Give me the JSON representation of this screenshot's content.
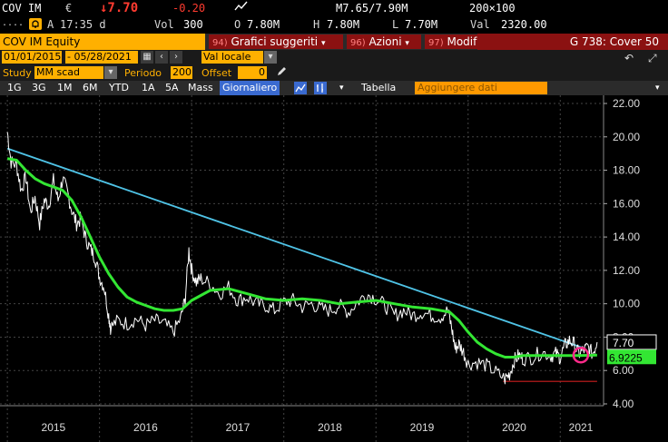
{
  "ticker": {
    "symbol": "COV IM",
    "currency": "€",
    "last_price": "↓7.70",
    "change": "-0.20",
    "dots": "....",
    "session": "A",
    "time": "17:35 d",
    "vol_label": "Vol",
    "vol": "300",
    "open_label": "O",
    "open": "7.80M",
    "high_label": "H",
    "high": "7.80M",
    "low_label": "L",
    "low": "7.70M",
    "bid_ask": "M7.65/7.90M",
    "size": "200×100",
    "val_label": "Val",
    "val": "2320.00"
  },
  "menubar": {
    "equity": "COV IM Equity",
    "btn_graphs_num": "94)",
    "btn_graphs": "Grafici suggeriti",
    "btn_actions_num": "96)",
    "btn_actions": "Azioni",
    "btn_modify_num": "97)",
    "btn_modify": "Modif",
    "cover": "G 738: Cover 50"
  },
  "daterow": {
    "start": "01/01/2015",
    "end": "05/28/2021",
    "currency_sel": "Val locale"
  },
  "studyrow": {
    "study_label": "Study",
    "study": "MM scad",
    "period_label": "Periodo",
    "period": "200",
    "offset_label": "Offset",
    "offset": "0"
  },
  "timeframes": [
    "1G",
    "3G",
    "1M",
    "6M",
    "YTD",
    "1A",
    "5A",
    "Mass"
  ],
  "timeframe_active": "Giornaliero",
  "table_label": "Tabella",
  "add_data": "Aggiungere dati",
  "colors": {
    "price": "#ffffff",
    "ma": "#33e633",
    "trend": "#4fc3e6",
    "support": "#cc1f1f"
  },
  "chart_data": {
    "type": "line",
    "x_ticks": [
      "2015",
      "2016",
      "2017",
      "2018",
      "2019",
      "2020",
      "2021"
    ],
    "y_ticks": [
      "22.00",
      "20.00",
      "18.00",
      "16.00",
      "14.00",
      "12.00",
      "10.00",
      "8.00",
      "6.00",
      "4.00"
    ],
    "ylim": [
      4,
      22.6
    ],
    "last_price_label": "7.70",
    "ma_label": "6.9225",
    "series": [
      {
        "key": "price",
        "values": [
          [
            2015.0,
            20.3
          ],
          [
            2015.04,
            18.5
          ],
          [
            2015.1,
            18.3
          ],
          [
            2015.15,
            16.8
          ],
          [
            2015.2,
            17.6
          ],
          [
            2015.25,
            15.5
          ],
          [
            2015.3,
            16.4
          ],
          [
            2015.35,
            14.8
          ],
          [
            2015.4,
            16.2
          ],
          [
            2015.45,
            15.9
          ],
          [
            2015.5,
            17.4
          ],
          [
            2015.55,
            16.2
          ],
          [
            2015.6,
            17.5
          ],
          [
            2015.65,
            16.7
          ],
          [
            2015.7,
            15.6
          ],
          [
            2015.75,
            14.8
          ],
          [
            2015.8,
            15.1
          ],
          [
            2015.85,
            13.9
          ],
          [
            2015.9,
            13.3
          ],
          [
            2015.95,
            12.8
          ],
          [
            2016.0,
            11.6
          ],
          [
            2016.05,
            11.0
          ],
          [
            2016.1,
            9.3
          ],
          [
            2016.12,
            8.6
          ],
          [
            2016.2,
            9.0
          ],
          [
            2016.3,
            8.8
          ],
          [
            2016.4,
            9.1
          ],
          [
            2016.5,
            8.7
          ],
          [
            2016.6,
            9.0
          ],
          [
            2016.7,
            8.8
          ],
          [
            2016.8,
            8.3
          ],
          [
            2016.88,
            9.1
          ],
          [
            2016.93,
            10.3
          ],
          [
            2016.97,
            13.2
          ],
          [
            2017.0,
            12.0
          ],
          [
            2017.05,
            11.3
          ],
          [
            2017.1,
            11.5
          ],
          [
            2017.2,
            11.2
          ],
          [
            2017.3,
            10.6
          ],
          [
            2017.4,
            11.0
          ],
          [
            2017.5,
            10.2
          ],
          [
            2017.6,
            10.4
          ],
          [
            2017.7,
            10.0
          ],
          [
            2017.8,
            9.9
          ],
          [
            2017.9,
            9.6
          ],
          [
            2018.0,
            10.1
          ],
          [
            2018.1,
            10.2
          ],
          [
            2018.2,
            9.8
          ],
          [
            2018.3,
            10.0
          ],
          [
            2018.4,
            9.7
          ],
          [
            2018.5,
            9.6
          ],
          [
            2018.6,
            9.9
          ],
          [
            2018.7,
            9.5
          ],
          [
            2018.8,
            10.1
          ],
          [
            2018.9,
            10.6
          ],
          [
            2019.0,
            10.3
          ],
          [
            2019.1,
            9.9
          ],
          [
            2019.2,
            9.3
          ],
          [
            2019.3,
            9.6
          ],
          [
            2019.4,
            9.3
          ],
          [
            2019.5,
            9.5
          ],
          [
            2019.6,
            9.3
          ],
          [
            2019.7,
            9.2
          ],
          [
            2019.78,
            9.6
          ],
          [
            2019.82,
            8.6
          ],
          [
            2019.86,
            7.3
          ],
          [
            2019.9,
            7.6
          ],
          [
            2019.95,
            7.1
          ],
          [
            2020.0,
            6.4
          ],
          [
            2020.1,
            6.5
          ],
          [
            2020.2,
            6.3
          ],
          [
            2020.3,
            5.9
          ],
          [
            2020.4,
            5.5
          ],
          [
            2020.45,
            5.8
          ],
          [
            2020.5,
            6.6
          ],
          [
            2020.55,
            6.9
          ],
          [
            2020.6,
            6.7
          ],
          [
            2020.7,
            6.8
          ],
          [
            2020.8,
            7.1
          ],
          [
            2020.9,
            6.9
          ],
          [
            2020.95,
            7.0
          ],
          [
            2021.0,
            6.8
          ],
          [
            2021.05,
            7.5
          ],
          [
            2021.1,
            7.8
          ],
          [
            2021.15,
            7.6
          ],
          [
            2021.2,
            7.0
          ],
          [
            2021.25,
            7.2
          ],
          [
            2021.3,
            7.4
          ],
          [
            2021.35,
            7.0
          ],
          [
            2021.4,
            7.7
          ]
        ]
      },
      {
        "key": "ma",
        "values": [
          [
            2015.0,
            18.7
          ],
          [
            2015.1,
            18.6
          ],
          [
            2015.2,
            18.0
          ],
          [
            2015.3,
            17.5
          ],
          [
            2015.4,
            17.2
          ],
          [
            2015.5,
            17.0
          ],
          [
            2015.6,
            16.8
          ],
          [
            2015.7,
            16.2
          ],
          [
            2015.8,
            15.2
          ],
          [
            2015.9,
            14.0
          ],
          [
            2016.0,
            12.8
          ],
          [
            2016.1,
            11.8
          ],
          [
            2016.2,
            11.0
          ],
          [
            2016.3,
            10.4
          ],
          [
            2016.4,
            10.1
          ],
          [
            2016.5,
            9.9
          ],
          [
            2016.6,
            9.7
          ],
          [
            2016.7,
            9.6
          ],
          [
            2016.8,
            9.6
          ],
          [
            2016.9,
            9.7
          ],
          [
            2017.0,
            10.2
          ],
          [
            2017.1,
            10.5
          ],
          [
            2017.2,
            10.8
          ],
          [
            2017.4,
            10.9
          ],
          [
            2017.6,
            10.6
          ],
          [
            2017.8,
            10.3
          ],
          [
            2018.0,
            10.2
          ],
          [
            2018.2,
            10.3
          ],
          [
            2018.4,
            10.2
          ],
          [
            2018.6,
            10.0
          ],
          [
            2018.8,
            10.1
          ],
          [
            2019.0,
            10.2
          ],
          [
            2019.2,
            10.0
          ],
          [
            2019.4,
            9.8
          ],
          [
            2019.6,
            9.7
          ],
          [
            2019.8,
            9.5
          ],
          [
            2019.9,
            9.0
          ],
          [
            2020.0,
            8.3
          ],
          [
            2020.1,
            7.7
          ],
          [
            2020.2,
            7.3
          ],
          [
            2020.3,
            7.0
          ],
          [
            2020.4,
            6.8
          ],
          [
            2020.5,
            6.8
          ],
          [
            2020.6,
            6.9
          ],
          [
            2020.7,
            6.9
          ],
          [
            2020.8,
            6.9
          ],
          [
            2020.9,
            6.9
          ],
          [
            2021.0,
            6.9
          ],
          [
            2021.1,
            6.9
          ],
          [
            2021.2,
            6.9
          ],
          [
            2021.4,
            6.9225
          ]
        ]
      },
      {
        "key": "trend",
        "values": [
          [
            2015.0,
            19.3
          ],
          [
            2021.25,
            7.35
          ]
        ]
      },
      {
        "key": "support",
        "values": [
          [
            2020.38,
            5.35
          ],
          [
            2021.4,
            5.35
          ]
        ]
      }
    ]
  }
}
